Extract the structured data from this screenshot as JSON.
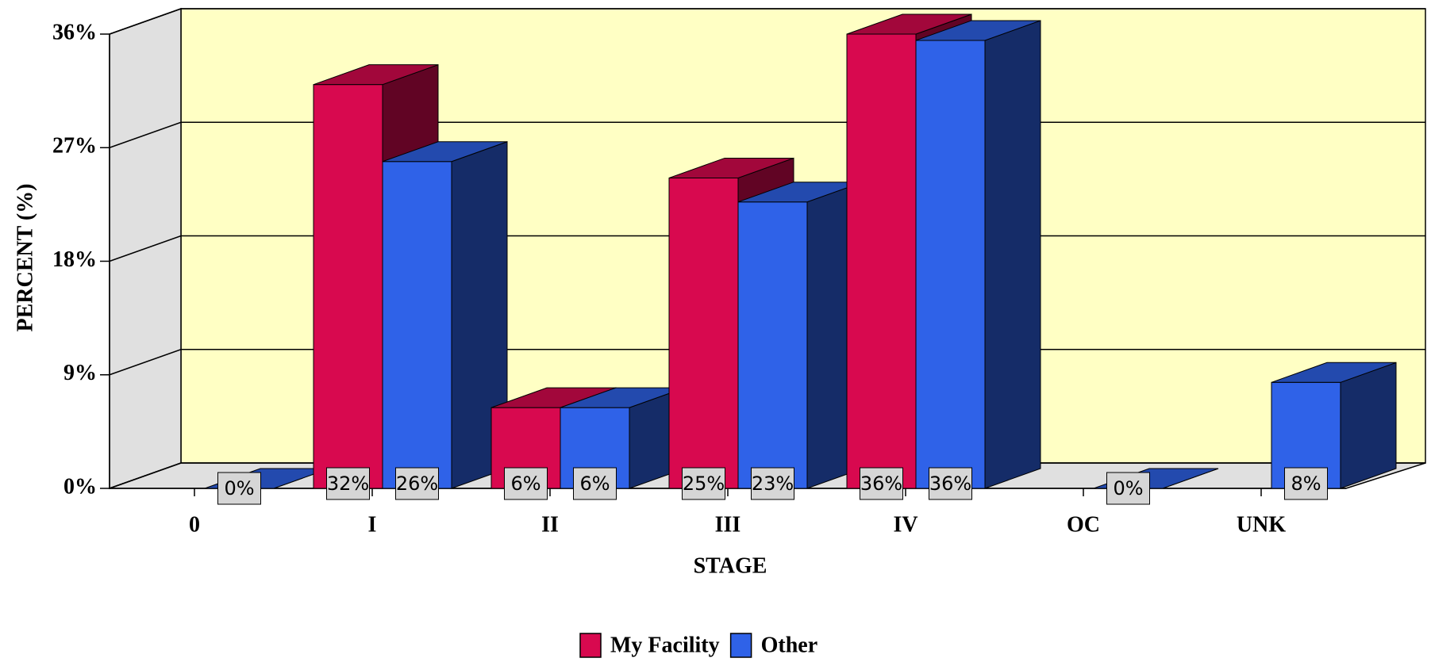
{
  "chart_data": {
    "type": "bar3d",
    "categories": [
      "0",
      "I",
      "II",
      "III",
      "IV",
      "OC",
      "UNK"
    ],
    "series": [
      {
        "name": "My Facility",
        "color": "#d8094f",
        "values": [
          null,
          32,
          6.4,
          24.6,
          36,
          null,
          null
        ],
        "value_labels": [
          null,
          "32%",
          "6%",
          "25%",
          "36%",
          null,
          null
        ]
      },
      {
        "name": "Other",
        "color": "#2f62e8",
        "values": [
          0,
          25.9,
          6.4,
          22.7,
          35.5,
          0,
          8.4
        ],
        "value_labels": [
          "0%",
          "26%",
          "6%",
          "23%",
          "36%",
          "0%",
          "8%"
        ]
      }
    ],
    "ylim": [
      0,
      36
    ],
    "yticks": [
      {
        "value": 0,
        "label": "0%"
      },
      {
        "value": 9,
        "label": "9%"
      },
      {
        "value": 18,
        "label": "18%"
      },
      {
        "value": 27,
        "label": "27%"
      },
      {
        "value": 36,
        "label": "36%"
      }
    ],
    "xlabel": "STAGE",
    "ylabel": "PERCENT (%)",
    "grid": true,
    "legend": "bottom"
  }
}
